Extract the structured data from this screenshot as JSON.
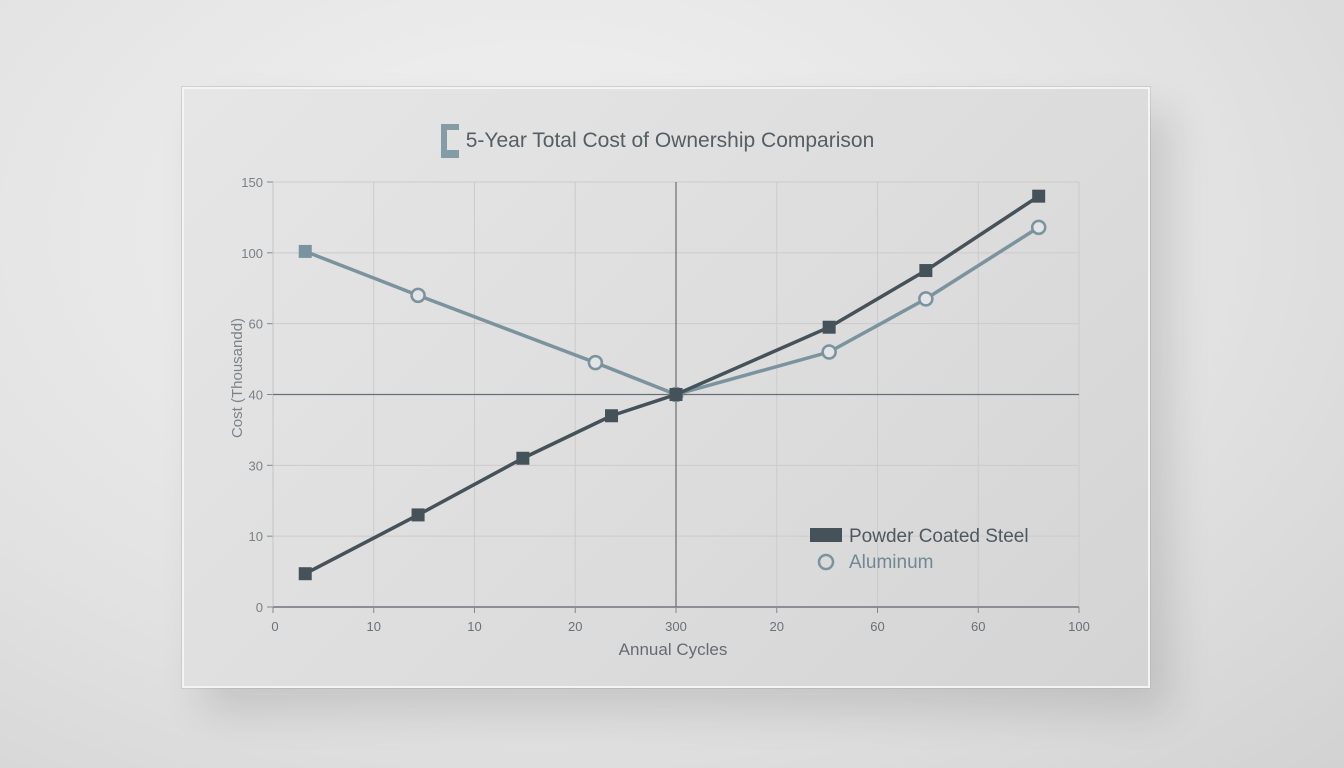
{
  "chart_data": {
    "type": "line",
    "title": "5-Year Total Cost of Ownership Comparison",
    "xlabel": "Annual Cycles",
    "ylabel": "Cost (Thousandd)",
    "x_tick_labels": [
      "0",
      "10",
      "10",
      "20",
      "300",
      "20",
      "60",
      "60",
      "100"
    ],
    "y_tick_labels": [
      "0",
      "10",
      "30",
      "40",
      "60",
      "100",
      "150"
    ],
    "y_tick_values": [
      0,
      10,
      30,
      40,
      60,
      100,
      150
    ],
    "xlim": [
      0,
      100
    ],
    "ylim": [
      0,
      150
    ],
    "grid": true,
    "legend_placement": "bottom-right",
    "reference_lines": {
      "x": 50,
      "y": 40
    },
    "series": [
      {
        "name": "Powder Coated Steel",
        "color": "#46525a",
        "marker": "square",
        "x": [
          4,
          18,
          31,
          42,
          50,
          69,
          81,
          95
        ],
        "y": [
          4.7,
          16,
          31,
          37,
          40,
          59,
          90,
          140
        ]
      },
      {
        "name": "Aluminum",
        "color": "#7a939e",
        "marker": "circle",
        "x": [
          4,
          18,
          40,
          50,
          69,
          81,
          95
        ],
        "y": [
          101,
          76,
          49,
          40,
          52,
          74,
          118
        ]
      }
    ]
  }
}
